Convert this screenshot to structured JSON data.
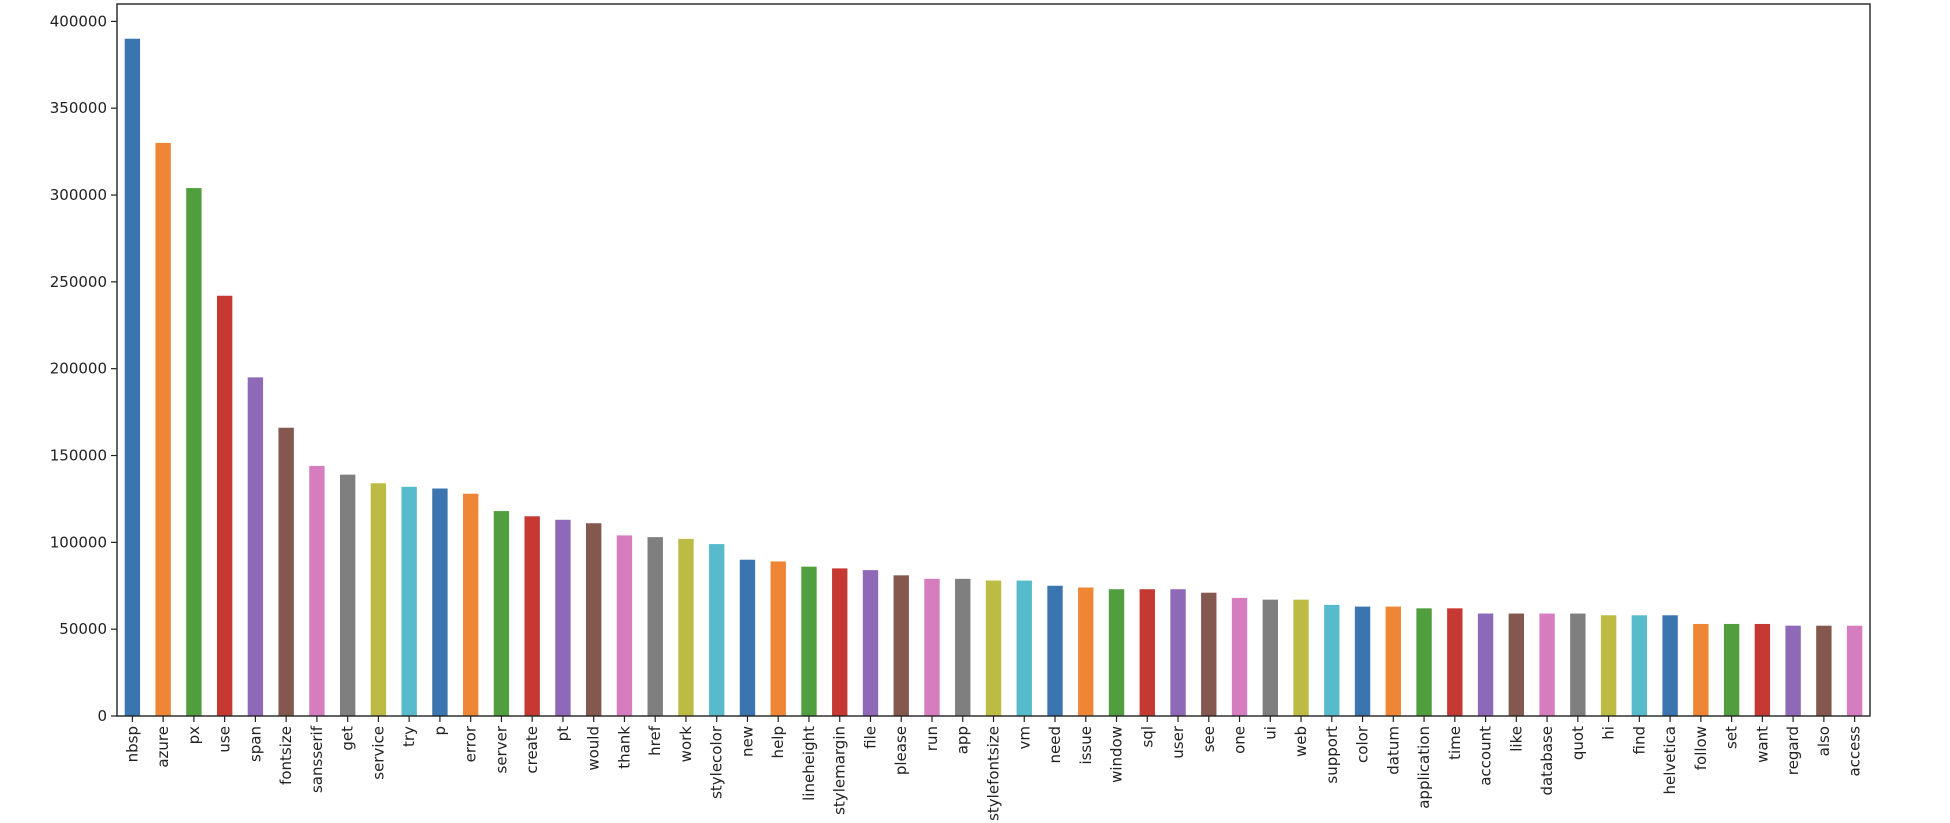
{
  "chart_data": {
    "type": "bar",
    "title": "",
    "xlabel": "",
    "ylabel": "",
    "ylim": [
      0,
      410000
    ],
    "yticks": [
      0,
      50000,
      100000,
      150000,
      200000,
      250000,
      300000,
      350000,
      400000
    ],
    "ytick_labels": [
      "0",
      "50000",
      "100000",
      "150000",
      "200000",
      "250000",
      "300000",
      "350000",
      "400000"
    ],
    "grid": false,
    "legend": "none",
    "categories": [
      "nbsp",
      "azure",
      "px",
      "use",
      "span",
      "fontsize",
      "sansserif",
      "get",
      "service",
      "try",
      "p",
      "error",
      "server",
      "create",
      "pt",
      "would",
      "thank",
      "href",
      "work",
      "stylecolor",
      "new",
      "help",
      "lineheight",
      "stylemargin",
      "file",
      "please",
      "run",
      "app",
      "stylefontsize",
      "vm",
      "need",
      "issue",
      "window",
      "sql",
      "user",
      "see",
      "one",
      "ui",
      "web",
      "support",
      "color",
      "datum",
      "application",
      "time",
      "account",
      "like",
      "database",
      "quot",
      "hi",
      "find",
      "helvetica",
      "follow",
      "set",
      "want",
      "regard",
      "also",
      "access"
    ],
    "values": [
      390000,
      330000,
      304000,
      242000,
      195000,
      166000,
      144000,
      139000,
      134000,
      132000,
      131000,
      128000,
      118000,
      115000,
      113000,
      111000,
      104000,
      103000,
      102000,
      99000,
      90000,
      89000,
      86000,
      85000,
      84000,
      81000,
      79000,
      79000,
      78000,
      78000,
      75000,
      74000,
      73000,
      73000,
      73000,
      71000,
      68000,
      67000,
      67000,
      64000,
      63000,
      63000,
      62000,
      62000,
      59000,
      59000,
      59000,
      59000,
      58000,
      58000,
      58000,
      53000,
      53000,
      53000,
      52000,
      52000,
      52000
    ],
    "palette": [
      "#3a75b0",
      "#ef8636",
      "#519e3e",
      "#c53932",
      "#8d69b8",
      "#84584e",
      "#d57dbf",
      "#7f7f7f",
      "#bcbc45",
      "#58bbcc"
    ]
  }
}
